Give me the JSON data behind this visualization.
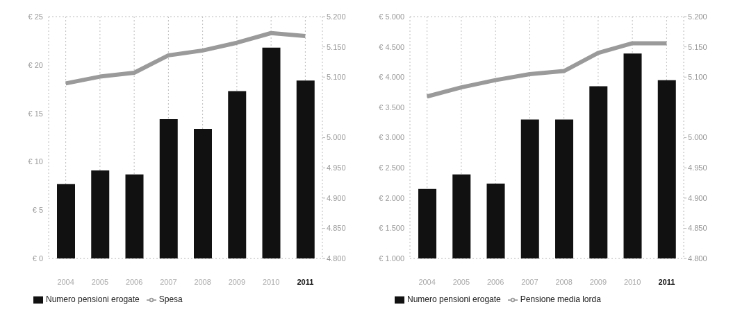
{
  "chart_data": [
    {
      "type": "bar",
      "categories": [
        "2004",
        "2005",
        "2006",
        "2007",
        "2008",
        "2009",
        "2010",
        "2011"
      ],
      "series": [
        {
          "name": "Numero pensioni erogate",
          "color": "#111111",
          "values": [
            7.7,
            9.1,
            8.7,
            14.4,
            13.4,
            17.3,
            21.8,
            18.4
          ]
        },
        {
          "name": "Spesa",
          "type": "line",
          "color": "#9a9a9a",
          "values": [
            18.1,
            18.8,
            19.2,
            21.0,
            21.5,
            22.3,
            23.3,
            23.0
          ]
        }
      ],
      "ylim": [
        0,
        25
      ],
      "yticks": [
        {
          "value": 0,
          "label": "€ 0"
        },
        {
          "value": 5,
          "label": "€ 5"
        },
        {
          "value": 10,
          "label": "€ 10"
        },
        {
          "value": 15,
          "label": "€ 15"
        },
        {
          "value": 20,
          "label": "€ 20"
        },
        {
          "value": 25,
          "label": "€ 25"
        }
      ],
      "y2lim": [
        4800,
        5200
      ],
      "y2ticks": [
        {
          "value": 4800,
          "label": "4.800"
        },
        {
          "value": 4850,
          "label": "4.850"
        },
        {
          "value": 4900,
          "label": "4.900"
        },
        {
          "value": 4950,
          "label": "4.950"
        },
        {
          "value": 5000,
          "label": "5.000"
        },
        {
          "value": 5100,
          "label": "5.100"
        },
        {
          "value": 5150,
          "label": "5.150"
        },
        {
          "value": 5200,
          "label": "5.200"
        }
      ],
      "grid": true,
      "legend": "bottom left",
      "marker": "none"
    },
    {
      "type": "bar",
      "y2lim": [
        4800,
        5200
      ],
      "y2ticks": [
        {
          "value": 4800,
          "label": "4.800"
        },
        {
          "value": 4850,
          "label": "4.850"
        },
        {
          "value": 4900,
          "label": "4.900"
        },
        {
          "value": 4950,
          "label": "4.950"
        },
        {
          "value": 5000,
          "label": "5.000"
        },
        {
          "value": 5100,
          "label": "5.100"
        },
        {
          "value": 5150,
          "label": "5.150"
        },
        {
          "value": 5200,
          "label": "5.200"
        }
      ],
      "categories": [
        "2004",
        "2005",
        "2006",
        "2007",
        "2008",
        "2009",
        "2010",
        "2011"
      ],
      "series": [
        {
          "name": "Numero pensioni erogate",
          "color": "#111111",
          "values": [
            2150,
            2390,
            2240,
            3300,
            3300,
            3850,
            4390,
            3950
          ]
        },
        {
          "name": "Pensione media lorda",
          "type": "line",
          "color": "#9a9a9a",
          "values": [
            3680,
            3830,
            3950,
            4050,
            4100,
            4400,
            4560,
            4560
          ]
        }
      ],
      "ylim": [
        1000,
        5000
      ],
      "yticks": [
        {
          "value": 1000,
          "label": "€ 1.000"
        },
        {
          "value": 1500,
          "label": "€ 1.500"
        },
        {
          "value": 2000,
          "label": "€ 2.000"
        },
        {
          "value": 2500,
          "label": "€ 2.500"
        },
        {
          "value": 3000,
          "label": "€ 3.000"
        },
        {
          "value": 3500,
          "label": "€ 3.500"
        },
        {
          "value": 4000,
          "label": "€ 4.000"
        },
        {
          "value": 4500,
          "label": "€ 4.500"
        },
        {
          "value": 5000,
          "label": "€ 5.000"
        }
      ],
      "grid": true,
      "legend": "bottom left",
      "marker": "none"
    }
  ]
}
